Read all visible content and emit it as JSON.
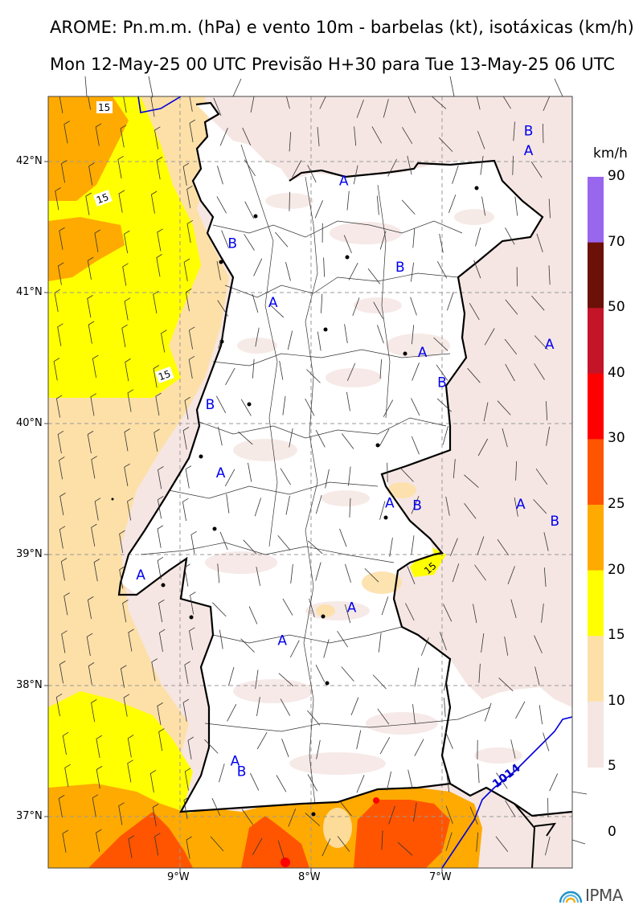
{
  "title_line1": "AROME: Pn.m.m. (hPa) e vento 10m - barbelas (kt), isotáxicas (km/h)",
  "title_line2": "Mon 12-May-25 00 UTC Previsão H+30 para Tue 13-May-25 06 UTC",
  "lat_labels": [
    "42°N",
    "41°N",
    "40°N",
    "39°N",
    "38°N",
    "37°N"
  ],
  "lon_labels": [
    "9°W",
    "8°W",
    "7°W"
  ],
  "colorbar": {
    "unit": "km/h",
    "ticks": [
      "90",
      "70",
      "50",
      "40",
      "30",
      "25",
      "20",
      "15",
      "10",
      "5",
      "0"
    ],
    "colors": [
      "#9966ee",
      "#6b1108",
      "#c41428",
      "#ff0000",
      "#ff5500",
      "#ffaa00",
      "#ffff00",
      "#fde0a8",
      "#f5e6e3"
    ]
  },
  "isobar_label": "1014",
  "isotach_labels": [
    "15",
    "15",
    "15",
    "15"
  ],
  "pressure_markers": [
    {
      "label": "A",
      "lon": -7.75,
      "lat": 41.82
    },
    {
      "label": "B",
      "lon": -8.6,
      "lat": 41.34
    },
    {
      "label": "A",
      "lon": -8.29,
      "lat": 40.89
    },
    {
      "label": "B",
      "lon": -7.32,
      "lat": 41.16
    },
    {
      "label": "A",
      "lon": -7.15,
      "lat": 40.51
    },
    {
      "label": "B",
      "lon": -7.0,
      "lat": 40.28
    },
    {
      "label": "B",
      "lon": -8.77,
      "lat": 40.11
    },
    {
      "label": "A",
      "lon": -8.69,
      "lat": 39.59
    },
    {
      "label": "A",
      "lon": -7.4,
      "lat": 39.36
    },
    {
      "label": "B",
      "lon": -7.19,
      "lat": 39.34
    },
    {
      "label": "A",
      "lon": -6.4,
      "lat": 39.35
    },
    {
      "label": "B",
      "lon": -6.14,
      "lat": 39.22
    },
    {
      "label": "A",
      "lon": -9.3,
      "lat": 38.81
    },
    {
      "label": "A",
      "lon": -8.22,
      "lat": 38.31
    },
    {
      "label": "A",
      "lon": -7.69,
      "lat": 38.56
    },
    {
      "label": "A",
      "lon": -8.58,
      "lat": 37.39
    },
    {
      "label": "B",
      "lon": -8.53,
      "lat": 37.31
    },
    {
      "label": "A",
      "lon": -6.34,
      "lat": 42.05
    },
    {
      "label": "B",
      "lon": -6.34,
      "lat": 42.2
    },
    {
      "label": "A",
      "lon": -6.18,
      "lat": 40.57
    }
  ],
  "brand": "IPMA"
}
